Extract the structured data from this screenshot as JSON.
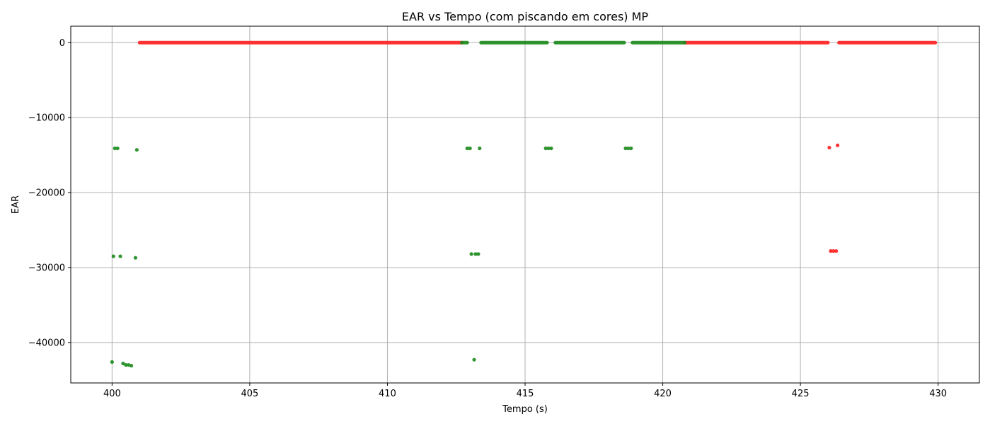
{
  "chart_data": {
    "type": "scatter",
    "title": "EAR vs Tempo (com piscando em cores) MP",
    "xlabel": "Tempo (s)",
    "ylabel": "EAR",
    "xlim": [
      398.5,
      431.5
    ],
    "ylim": [
      -45400,
      2200
    ],
    "xticks": [
      400,
      405,
      410,
      415,
      420,
      425,
      430
    ],
    "xtick_labels": [
      "400",
      "405",
      "410",
      "415",
      "420",
      "425",
      "430"
    ],
    "yticks": [
      0,
      -10000,
      -20000,
      -30000,
      -40000
    ],
    "ytick_labels": [
      "0",
      "−10000",
      "−20000",
      "−30000",
      "−40000"
    ],
    "grid": true,
    "colors": {
      "red": "#ff1f1f",
      "green": "#1a8a1a",
      "grid": "#b0b0b0"
    },
    "series": [
      {
        "color": "red",
        "segments": [
          [
            401.0,
            412.7
          ],
          [
            420.8,
            426.0
          ],
          [
            426.4,
            429.9
          ]
        ],
        "value": 0,
        "points": [
          [
            426.05,
            -14000
          ],
          [
            426.35,
            -13700
          ],
          [
            426.1,
            -27800
          ],
          [
            426.2,
            -27800
          ],
          [
            426.3,
            -27800
          ]
        ]
      },
      {
        "color": "green",
        "segments": [
          [
            412.7,
            412.9
          ],
          [
            413.4,
            415.8
          ],
          [
            416.1,
            418.6
          ],
          [
            418.9,
            420.8
          ]
        ],
        "value": 0,
        "points": [
          [
            400.1,
            -14100
          ],
          [
            400.2,
            -14100
          ],
          [
            400.9,
            -14300
          ],
          [
            400.05,
            -28500
          ],
          [
            400.3,
            -28500
          ],
          [
            400.85,
            -28700
          ],
          [
            400.0,
            -42600
          ],
          [
            400.4,
            -42800
          ],
          [
            400.5,
            -43000
          ],
          [
            400.6,
            -43000
          ],
          [
            400.7,
            -43100
          ],
          [
            412.9,
            -14100
          ],
          [
            413.0,
            -14100
          ],
          [
            413.35,
            -14100
          ],
          [
            413.05,
            -28200
          ],
          [
            413.2,
            -28200
          ],
          [
            413.3,
            -28200
          ],
          [
            413.15,
            -42300
          ],
          [
            415.75,
            -14100
          ],
          [
            415.85,
            -14100
          ],
          [
            415.95,
            -14100
          ],
          [
            418.65,
            -14100
          ],
          [
            418.75,
            -14100
          ],
          [
            418.85,
            -14100
          ]
        ]
      }
    ]
  }
}
